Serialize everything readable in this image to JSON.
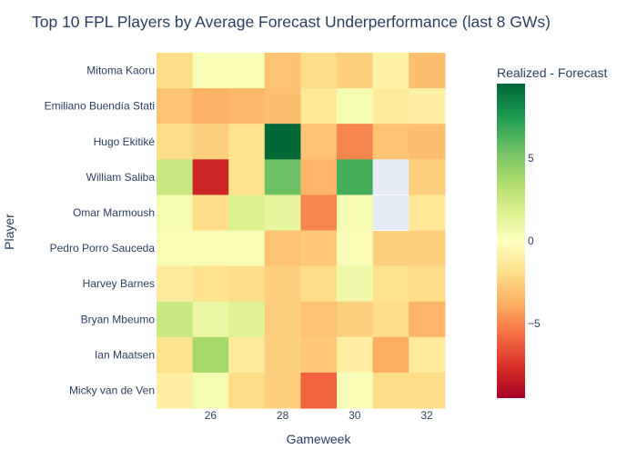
{
  "chart_data": {
    "type": "heatmap",
    "title": "Top 10 FPL Players by Average Forecast Underperformance (last 8 GWs)",
    "xlabel": "Gameweek",
    "ylabel": "Player",
    "x": [
      25,
      26,
      27,
      28,
      29,
      30,
      31,
      32
    ],
    "xticks": [
      26,
      28,
      30,
      32
    ],
    "y": [
      "Mitoma Kaoru",
      "Emiliano Buendía Stati",
      "Hugo Ekitiké",
      "William Saliba",
      "Omar Marmoush",
      "Pedro Porro Sauceda",
      "Harvey Barnes",
      "Bryan Mbeumo",
      "Ian Maatsen",
      "Micky van de Ven"
    ],
    "z": [
      [
        -2.0,
        0.3,
        0.3,
        -3.0,
        -2.0,
        -2.5,
        -0.8,
        -3.2
      ],
      [
        -3.0,
        -3.6,
        -3.4,
        -3.2,
        -1.5,
        0.5,
        -1.2,
        -1.0
      ],
      [
        -2.0,
        -2.5,
        -1.8,
        9.5,
        -3.0,
        -5.0,
        -3.0,
        -3.2
      ],
      [
        2.5,
        -8.0,
        -1.8,
        5.5,
        -3.5,
        6.5,
        null,
        -2.5
      ],
      [
        0.5,
        -2.0,
        1.8,
        1.2,
        -5.0,
        0.5,
        null,
        -1.5
      ],
      [
        0.3,
        0.3,
        0.3,
        -3.0,
        -2.8,
        0.3,
        -2.5,
        -2.5
      ],
      [
        -1.2,
        -1.8,
        -2.0,
        -2.5,
        -2.0,
        0.8,
        -1.8,
        -2.0
      ],
      [
        2.5,
        1.0,
        1.5,
        -2.5,
        -3.0,
        -2.5,
        -2.0,
        -3.5
      ],
      [
        -1.8,
        3.8,
        -1.2,
        -2.5,
        -2.8,
        -1.0,
        -3.8,
        -1.2
      ],
      [
        -1.0,
        0.5,
        -2.0,
        -2.5,
        -6.0,
        0.3,
        -2.0,
        -2.0
      ]
    ],
    "zmin": -9.5,
    "zmax": 9.5,
    "colorscale": "RdYlGn",
    "colorbar": {
      "title": "Realized - Forecast",
      "ticks": [
        5,
        0,
        -5
      ],
      "ticklabels": [
        "5",
        "0",
        "−5"
      ]
    },
    "missing_color": "#e5ecf6"
  }
}
